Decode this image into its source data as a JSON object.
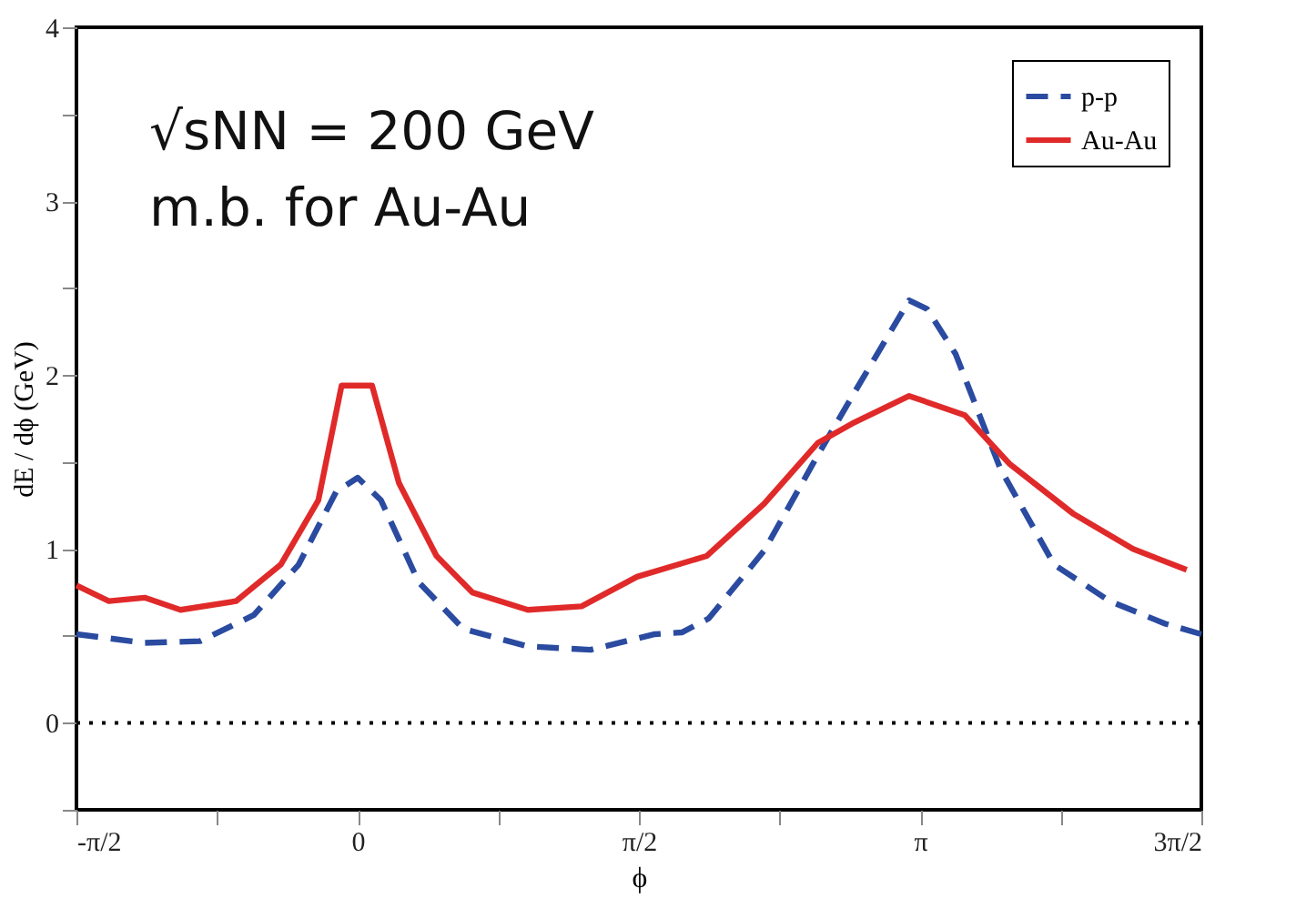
{
  "chart_data": {
    "type": "line",
    "xlabel": "ϕ",
    "ylabel": "dE / dϕ (GeV)",
    "annotations": [
      "√sNN = 200 GeV",
      "m.b. for Au-Au"
    ],
    "xlim": [
      -1.571,
      4.712
    ],
    "ylim": [
      -0.5,
      4
    ],
    "xticks": [
      {
        "value": -1.571,
        "label": "-π/2"
      },
      {
        "value": -0.785,
        "label": null
      },
      {
        "value": 0,
        "label": "0"
      },
      {
        "value": 0.785,
        "label": null
      },
      {
        "value": 1.571,
        "label": "π/2"
      },
      {
        "value": 2.356,
        "label": null
      },
      {
        "value": 3.142,
        "label": "π"
      },
      {
        "value": 3.927,
        "label": null
      },
      {
        "value": 4.712,
        "label": "3π/2"
      }
    ],
    "yticks": [
      {
        "value": -0.5,
        "label": null
      },
      0,
      {
        "value": 0.5,
        "label": null
      },
      1,
      {
        "value": 1.5,
        "label": null
      },
      2,
      {
        "value": 2.5,
        "label": null
      },
      3,
      {
        "value": 3.5,
        "label": null
      },
      4
    ],
    "series": [
      {
        "name": "p-p",
        "color": "#2a4ba0",
        "line_style": "dashed",
        "x": [
          -1.571,
          -1.19,
          -0.88,
          -0.58,
          -0.33,
          -0.12,
          0,
          0.13,
          0.34,
          0.59,
          0.95,
          1.3,
          1.66,
          1.81,
          1.96,
          2.27,
          2.57,
          2.78,
          3.08,
          3.18,
          3.34,
          3.59,
          3.89,
          4.2,
          4.51,
          4.712
        ],
        "values": [
          0.51,
          0.46,
          0.47,
          0.62,
          0.91,
          1.33,
          1.41,
          1.28,
          0.81,
          0.54,
          0.44,
          0.42,
          0.51,
          0.52,
          0.6,
          0.99,
          1.54,
          1.91,
          2.43,
          2.38,
          2.12,
          1.46,
          0.91,
          0.7,
          0.57,
          0.51
        ]
      },
      {
        "name": "Au-Au",
        "color": "#e02a2a",
        "line_style": "solid",
        "x": [
          -1.571,
          -1.39,
          -1.19,
          -0.99,
          -0.68,
          -0.43,
          -0.22,
          -0.09,
          0.08,
          0.23,
          0.44,
          0.64,
          0.95,
          1.25,
          1.56,
          1.95,
          2.27,
          2.57,
          2.76,
          3.08,
          3.39,
          3.64,
          4.0,
          4.33,
          4.63
        ],
        "values": [
          0.79,
          0.7,
          0.72,
          0.65,
          0.7,
          0.91,
          1.28,
          1.94,
          1.94,
          1.38,
          0.96,
          0.75,
          0.65,
          0.67,
          0.84,
          0.96,
          1.26,
          1.61,
          1.72,
          1.88,
          1.77,
          1.49,
          1.2,
          1.0,
          0.88
        ]
      }
    ],
    "ref_lines": [
      {
        "axis": "y",
        "value": 0,
        "line_style": "dotted",
        "color": "#000000"
      }
    ],
    "legend": "top right",
    "grid": false,
    "marker": "none"
  }
}
